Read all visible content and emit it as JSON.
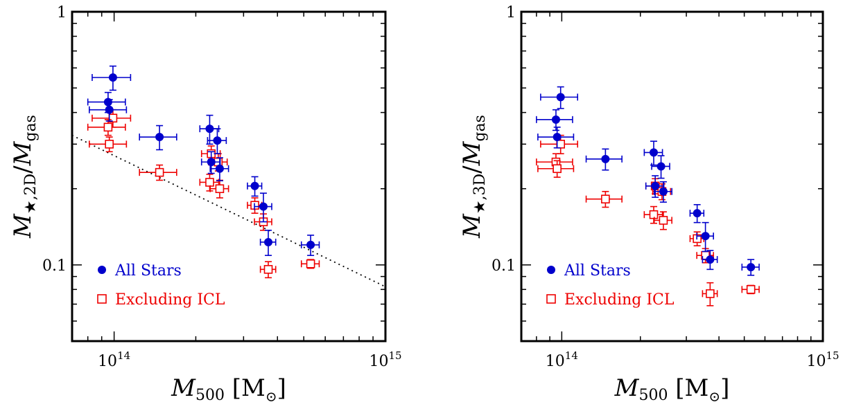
{
  "chart_data": [
    {
      "type": "scatter",
      "title": "",
      "xlabel": {
        "symbol": "M",
        "sub": "500",
        "unit_open": "[M",
        "unit_sub": "⊙",
        "unit_close": "]"
      },
      "ylabel": {
        "symbol": "M",
        "sub": "★,2D",
        "slash": "/",
        "symbol2": "M",
        "sub2": "gas"
      },
      "xscale": "log",
      "yscale": "log",
      "xlim": [
        70000000000000.0,
        1000000000000000.0
      ],
      "ylim": [
        0.05,
        1
      ],
      "xticks": [
        {
          "value": 100000000000000.0,
          "base": "10",
          "exp": "14"
        },
        {
          "value": 1000000000000000.0,
          "base": "10",
          "exp": "15"
        }
      ],
      "yticks": [
        {
          "value": 0.1,
          "label": "0.1"
        },
        {
          "value": 1,
          "label": "1"
        }
      ],
      "grid": false,
      "legend_position": "lower-left",
      "series": [
        {
          "name": "All Stars",
          "marker": "filled-circle",
          "color": "#0000cc",
          "points": [
            {
              "x": 99000000000000.0,
              "y": 0.55,
              "xerr": 16000000000000.0,
              "yerr": 0.06
            },
            {
              "x": 95000000000000.0,
              "y": 0.44,
              "xerr": 15000000000000.0,
              "yerr": 0.04
            },
            {
              "x": 96000000000000.0,
              "y": 0.41,
              "xerr": 15000000000000.0,
              "yerr": 0.04
            },
            {
              "x": 147000000000000.0,
              "y": 0.32,
              "xerr": 23000000000000.0,
              "yerr": 0.035
            },
            {
              "x": 225000000000000.0,
              "y": 0.345,
              "xerr": 18000000000000.0,
              "yerr": 0.045
            },
            {
              "x": 240000000000000.0,
              "y": 0.31,
              "xerr": 19000000000000.0,
              "yerr": 0.035
            },
            {
              "x": 228000000000000.0,
              "y": 0.255,
              "xerr": 18000000000000.0,
              "yerr": 0.025
            },
            {
              "x": 245000000000000.0,
              "y": 0.24,
              "xerr": 19000000000000.0,
              "yerr": 0.025
            },
            {
              "x": 330000000000000.0,
              "y": 0.205,
              "xerr": 20000000000000.0,
              "yerr": 0.018
            },
            {
              "x": 355000000000000.0,
              "y": 0.17,
              "xerr": 26000000000000.0,
              "yerr": 0.022
            },
            {
              "x": 370000000000000.0,
              "y": 0.123,
              "xerr": 24000000000000.0,
              "yerr": 0.014
            },
            {
              "x": 530000000000000.0,
              "y": 0.12,
              "xerr": 40000000000000.0,
              "yerr": 0.011
            }
          ]
        },
        {
          "name": "Excluding ICL",
          "marker": "open-square",
          "color": "#ee0000",
          "points": [
            {
              "x": 99000000000000.0,
              "y": 0.38,
              "xerr": 16000000000000.0,
              "yerr": 0.03
            },
            {
              "x": 95000000000000.0,
              "y": 0.35,
              "xerr": 15000000000000.0,
              "yerr": 0.025
            },
            {
              "x": 96000000000000.0,
              "y": 0.3,
              "xerr": 15000000000000.0,
              "yerr": 0.02
            },
            {
              "x": 147000000000000.0,
              "y": 0.232,
              "xerr": 23000000000000.0,
              "yerr": 0.016
            },
            {
              "x": 228000000000000.0,
              "y": 0.275,
              "xerr": 18000000000000.0,
              "yerr": 0.02
            },
            {
              "x": 242000000000000.0,
              "y": 0.255,
              "xerr": 19000000000000.0,
              "yerr": 0.02
            },
            {
              "x": 225000000000000.0,
              "y": 0.212,
              "xerr": 18000000000000.0,
              "yerr": 0.016
            },
            {
              "x": 245000000000000.0,
              "y": 0.2,
              "xerr": 19000000000000.0,
              "yerr": 0.016
            },
            {
              "x": 330000000000000.0,
              "y": 0.172,
              "xerr": 20000000000000.0,
              "yerr": 0.012
            },
            {
              "x": 355000000000000.0,
              "y": 0.148,
              "xerr": 26000000000000.0,
              "yerr": 0.011
            },
            {
              "x": 370000000000000.0,
              "y": 0.096,
              "xerr": 24000000000000.0,
              "yerr": 0.007
            },
            {
              "x": 530000000000000.0,
              "y": 0.101,
              "xerr": 40000000000000.0,
              "yerr": 0.004
            }
          ]
        }
      ],
      "fit_line": {
        "style": "dotted",
        "color": "#000000",
        "x": [
          70000000000000.0,
          1000000000000000.0
        ],
        "y": [
          0.325,
          0.082
        ]
      }
    },
    {
      "type": "scatter",
      "title": "",
      "xlabel": {
        "symbol": "M",
        "sub": "500",
        "unit_open": "[M",
        "unit_sub": "⊙",
        "unit_close": "]"
      },
      "ylabel": {
        "symbol": "M",
        "sub": "★,3D",
        "slash": "/",
        "symbol2": "M",
        "sub2": "gas"
      },
      "xscale": "log",
      "yscale": "log",
      "xlim": [
        70000000000000.0,
        1000000000000000.0
      ],
      "ylim": [
        0.05,
        1
      ],
      "xticks": [
        {
          "value": 100000000000000.0,
          "base": "10",
          "exp": "14"
        },
        {
          "value": 1000000000000000.0,
          "base": "10",
          "exp": "15"
        }
      ],
      "yticks": [
        {
          "value": 0.1,
          "label": "0.1"
        },
        {
          "value": 1,
          "label": "1"
        }
      ],
      "grid": false,
      "legend_position": "lower-left",
      "series": [
        {
          "name": "All Stars",
          "marker": "filled-circle",
          "color": "#0000cc",
          "points": [
            {
              "x": 99000000000000.0,
              "y": 0.46,
              "xerr": 16000000000000.0,
              "yerr": 0.045
            },
            {
              "x": 95000000000000.0,
              "y": 0.375,
              "xerr": 15000000000000.0,
              "yerr": 0.035
            },
            {
              "x": 96000000000000.0,
              "y": 0.32,
              "xerr": 15000000000000.0,
              "yerr": 0.03
            },
            {
              "x": 147000000000000.0,
              "y": 0.262,
              "xerr": 23000000000000.0,
              "yerr": 0.025
            },
            {
              "x": 225000000000000.0,
              "y": 0.278,
              "xerr": 18000000000000.0,
              "yerr": 0.03
            },
            {
              "x": 240000000000000.0,
              "y": 0.245,
              "xerr": 19000000000000.0,
              "yerr": 0.025
            },
            {
              "x": 228000000000000.0,
              "y": 0.205,
              "xerr": 18000000000000.0,
              "yerr": 0.02
            },
            {
              "x": 245000000000000.0,
              "y": 0.195,
              "xerr": 19000000000000.0,
              "yerr": 0.018
            },
            {
              "x": 330000000000000.0,
              "y": 0.16,
              "xerr": 20000000000000.0,
              "yerr": 0.013
            },
            {
              "x": 355000000000000.0,
              "y": 0.13,
              "xerr": 26000000000000.0,
              "yerr": 0.017
            },
            {
              "x": 370000000000000.0,
              "y": 0.105,
              "xerr": 24000000000000.0,
              "yerr": 0.009
            },
            {
              "x": 530000000000000.0,
              "y": 0.098,
              "xerr": 40000000000000.0,
              "yerr": 0.007
            }
          ]
        },
        {
          "name": "Excluding ICL",
          "marker": "open-square",
          "color": "#ee0000",
          "points": [
            {
              "x": 99000000000000.0,
              "y": 0.3,
              "xerr": 16000000000000.0,
              "yerr": 0.025
            },
            {
              "x": 95000000000000.0,
              "y": 0.255,
              "xerr": 15000000000000.0,
              "yerr": 0.02
            },
            {
              "x": 96000000000000.0,
              "y": 0.24,
              "xerr": 15000000000000.0,
              "yerr": 0.018
            },
            {
              "x": 147000000000000.0,
              "y": 0.182,
              "xerr": 23000000000000.0,
              "yerr": 0.013
            },
            {
              "x": 228000000000000.0,
              "y": 0.205,
              "xerr": 18000000000000.0,
              "yerr": 0.014
            },
            {
              "x": 242000000000000.0,
              "y": 0.195,
              "xerr": 19000000000000.0,
              "yerr": 0.014
            },
            {
              "x": 225000000000000.0,
              "y": 0.158,
              "xerr": 18000000000000.0,
              "yerr": 0.012
            },
            {
              "x": 245000000000000.0,
              "y": 0.15,
              "xerr": 19000000000000.0,
              "yerr": 0.012
            },
            {
              "x": 330000000000000.0,
              "y": 0.127,
              "xerr": 20000000000000.0,
              "yerr": 0.008
            },
            {
              "x": 355000000000000.0,
              "y": 0.109,
              "xerr": 26000000000000.0,
              "yerr": 0.007
            },
            {
              "x": 370000000000000.0,
              "y": 0.077,
              "xerr": 24000000000000.0,
              "yerr": 0.008
            },
            {
              "x": 530000000000000.0,
              "y": 0.08,
              "xerr": 40000000000000.0,
              "yerr": 0.003
            }
          ]
        }
      ]
    }
  ]
}
